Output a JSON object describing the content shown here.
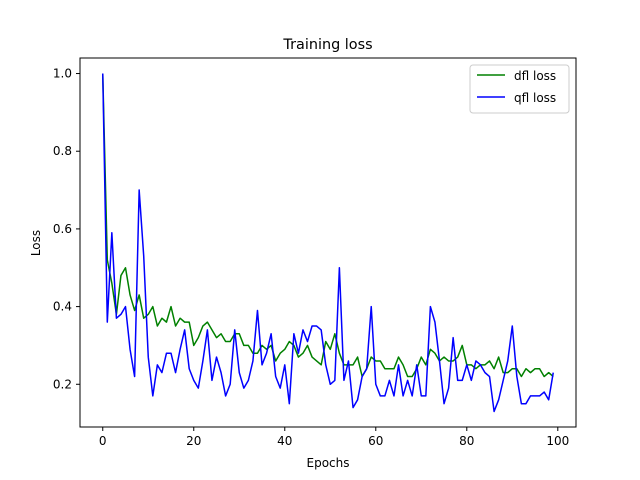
{
  "chart_data": {
    "type": "line",
    "title": "Training loss",
    "xlabel": "Epochs",
    "ylabel": "Loss",
    "xlim": [
      -5,
      104
    ],
    "ylim": [
      0.09,
      1.04
    ],
    "xticks": [
      0,
      20,
      40,
      60,
      80,
      100
    ],
    "yticks": [
      0.2,
      0.4,
      0.6,
      0.8,
      1.0
    ],
    "xtick_labels": [
      "0",
      "20",
      "40",
      "60",
      "80",
      "100"
    ],
    "ytick_labels": [
      "0.2",
      "0.4",
      "0.6",
      "0.8",
      "1.0"
    ],
    "grid": false,
    "legend_position": "top-right",
    "series": [
      {
        "name": "dfl loss",
        "color": "#008000",
        "x": [
          0,
          1,
          2,
          3,
          4,
          5,
          6,
          7,
          8,
          9,
          10,
          11,
          12,
          13,
          14,
          15,
          16,
          17,
          18,
          19,
          20,
          21,
          22,
          23,
          24,
          25,
          26,
          27,
          28,
          29,
          30,
          31,
          32,
          33,
          34,
          35,
          36,
          37,
          38,
          39,
          40,
          41,
          42,
          43,
          44,
          45,
          46,
          47,
          48,
          49,
          50,
          51,
          52,
          53,
          54,
          55,
          56,
          57,
          58,
          59,
          60,
          61,
          62,
          63,
          64,
          65,
          66,
          67,
          68,
          69,
          70,
          71,
          72,
          73,
          74,
          75,
          76,
          77,
          78,
          79,
          80,
          81,
          82,
          83,
          84,
          85,
          86,
          87,
          88,
          89,
          90,
          91,
          92,
          93,
          94,
          95,
          96,
          97,
          98,
          99
        ],
        "values": [
          1.0,
          0.52,
          0.46,
          0.38,
          0.48,
          0.5,
          0.43,
          0.39,
          0.43,
          0.37,
          0.38,
          0.4,
          0.35,
          0.37,
          0.36,
          0.4,
          0.35,
          0.37,
          0.36,
          0.36,
          0.3,
          0.32,
          0.35,
          0.36,
          0.34,
          0.32,
          0.33,
          0.31,
          0.31,
          0.33,
          0.33,
          0.3,
          0.3,
          0.28,
          0.28,
          0.3,
          0.29,
          0.3,
          0.26,
          0.28,
          0.29,
          0.31,
          0.3,
          0.27,
          0.28,
          0.3,
          0.27,
          0.26,
          0.25,
          0.31,
          0.29,
          0.33,
          0.28,
          0.25,
          0.25,
          0.25,
          0.27,
          0.22,
          0.24,
          0.27,
          0.26,
          0.26,
          0.24,
          0.24,
          0.24,
          0.27,
          0.25,
          0.22,
          0.22,
          0.24,
          0.27,
          0.25,
          0.29,
          0.28,
          0.26,
          0.27,
          0.26,
          0.26,
          0.27,
          0.3,
          0.25,
          0.25,
          0.24,
          0.25,
          0.25,
          0.26,
          0.24,
          0.27,
          0.23,
          0.23,
          0.24,
          0.24,
          0.22,
          0.24,
          0.23,
          0.24,
          0.24,
          0.22,
          0.23,
          0.22
        ]
      },
      {
        "name": "qfl loss",
        "color": "#0000ff",
        "x": [
          0,
          1,
          2,
          3,
          4,
          5,
          6,
          7,
          8,
          9,
          10,
          11,
          12,
          13,
          14,
          15,
          16,
          17,
          18,
          19,
          20,
          21,
          22,
          23,
          24,
          25,
          26,
          27,
          28,
          29,
          30,
          31,
          32,
          33,
          34,
          35,
          36,
          37,
          38,
          39,
          40,
          41,
          42,
          43,
          44,
          45,
          46,
          47,
          48,
          49,
          50,
          51,
          52,
          53,
          54,
          55,
          56,
          57,
          58,
          59,
          60,
          61,
          62,
          63,
          64,
          65,
          66,
          67,
          68,
          69,
          70,
          71,
          72,
          73,
          74,
          75,
          76,
          77,
          78,
          79,
          80,
          81,
          82,
          83,
          84,
          85,
          86,
          87,
          88,
          89,
          90,
          91,
          92,
          93,
          94,
          95,
          96,
          97,
          98,
          99
        ],
        "values": [
          1.0,
          0.36,
          0.59,
          0.37,
          0.38,
          0.4,
          0.29,
          0.22,
          0.7,
          0.53,
          0.27,
          0.17,
          0.25,
          0.23,
          0.28,
          0.28,
          0.23,
          0.29,
          0.34,
          0.24,
          0.21,
          0.19,
          0.26,
          0.34,
          0.21,
          0.27,
          0.23,
          0.17,
          0.2,
          0.34,
          0.23,
          0.19,
          0.21,
          0.26,
          0.39,
          0.25,
          0.28,
          0.33,
          0.22,
          0.19,
          0.25,
          0.15,
          0.33,
          0.28,
          0.34,
          0.31,
          0.35,
          0.35,
          0.34,
          0.25,
          0.2,
          0.21,
          0.5,
          0.21,
          0.26,
          0.14,
          0.16,
          0.22,
          0.24,
          0.4,
          0.2,
          0.17,
          0.17,
          0.21,
          0.17,
          0.25,
          0.17,
          0.21,
          0.17,
          0.25,
          0.17,
          0.17,
          0.4,
          0.36,
          0.26,
          0.15,
          0.19,
          0.32,
          0.21,
          0.21,
          0.25,
          0.21,
          0.26,
          0.25,
          0.23,
          0.22,
          0.13,
          0.16,
          0.21,
          0.26,
          0.35,
          0.22,
          0.15,
          0.15,
          0.17,
          0.17,
          0.17,
          0.18,
          0.16,
          0.23
        ]
      }
    ]
  }
}
